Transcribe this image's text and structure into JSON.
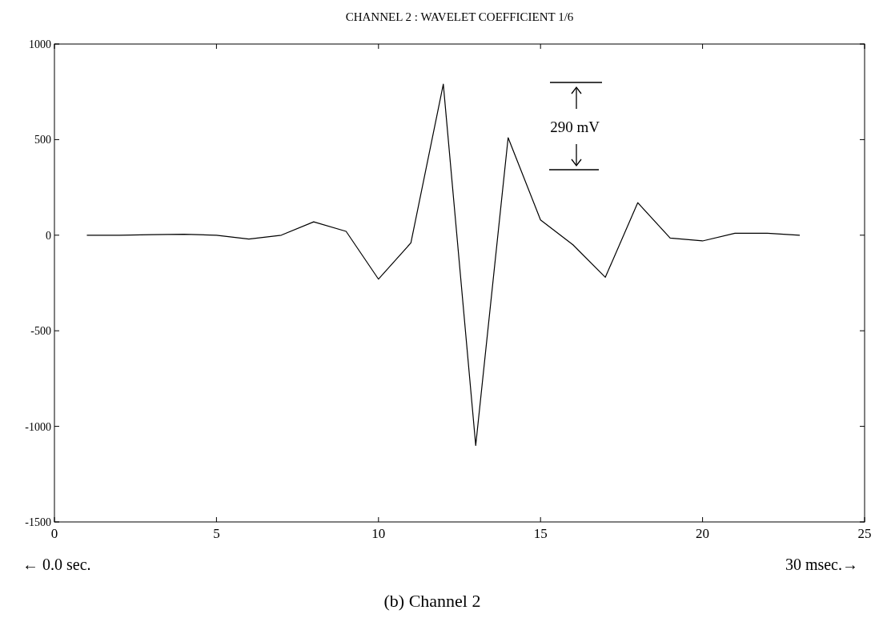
{
  "chart_data": {
    "type": "line",
    "title": "CHANNEL 2 : WAVELET COEFFICIENT 1/6",
    "x": [
      1,
      2,
      3,
      4,
      5,
      6,
      7,
      8,
      9,
      10,
      11,
      12,
      13,
      14,
      15,
      16,
      17,
      18,
      19,
      20,
      21,
      22,
      23
    ],
    "series": [
      {
        "color": "#000000",
        "values": [
          0,
          0,
          3,
          5,
          0,
          -20,
          0,
          70,
          20,
          -230,
          -40,
          790,
          -1100,
          510,
          80,
          -50,
          -220,
          170,
          -15,
          -30,
          10,
          10,
          0
        ]
      }
    ],
    "xlim": [
      0,
      25
    ],
    "xticks": [
      0,
      5,
      10,
      15,
      20,
      25
    ],
    "ylim": [
      -1500,
      1000
    ],
    "yticks": [
      -1500,
      -1000,
      -500,
      0,
      500,
      1000
    ],
    "grid": false,
    "marker": "none",
    "line_style": "solid",
    "annotations": [
      "290 mV",
      "← 0.0 sec.",
      "30 msec.→",
      "(b) Channel 2"
    ]
  }
}
